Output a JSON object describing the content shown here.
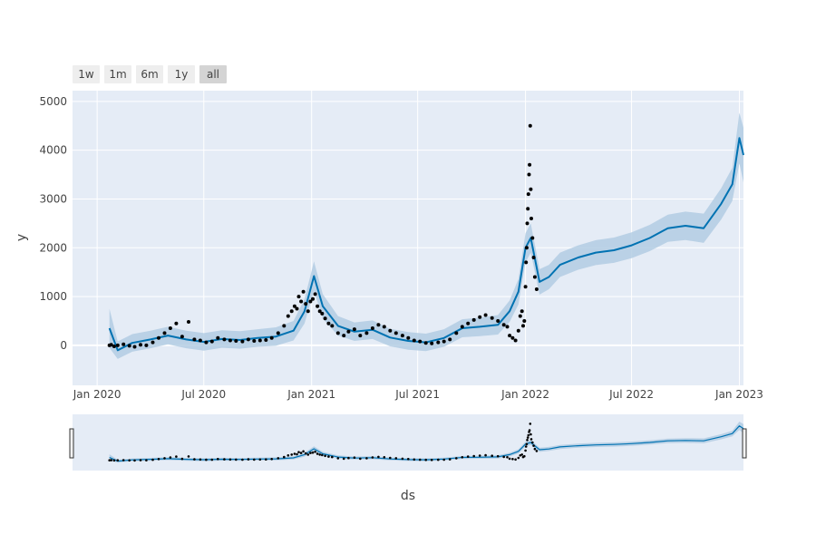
{
  "range_buttons": [
    {
      "label": "1w",
      "active": false
    },
    {
      "label": "1m",
      "active": false
    },
    {
      "label": "6m",
      "active": false
    },
    {
      "label": "1y",
      "active": false
    },
    {
      "label": "all",
      "active": true
    }
  ],
  "colors": {
    "plot_bg": "#e5ecf6",
    "forecast_line": "#0072b2",
    "uncertainty_band": "#b3cde3",
    "observed_points": "#000000",
    "grid": "#ffffff"
  },
  "chart_data": {
    "type": "line",
    "title": "",
    "xlabel": "ds",
    "ylabel": "y",
    "x_range": [
      "2019-11-20",
      "2023-01-08"
    ],
    "ylim": [
      -820,
      5220
    ],
    "x_ticks": [
      {
        "date": "2020-01-01",
        "label": "Jan 2020"
      },
      {
        "date": "2020-07-01",
        "label": "Jul 2020"
      },
      {
        "date": "2021-01-01",
        "label": "Jan 2021"
      },
      {
        "date": "2021-07-01",
        "label": "Jul 2021"
      },
      {
        "date": "2022-01-01",
        "label": "Jan 2022"
      },
      {
        "date": "2022-07-01",
        "label": "Jul 2022"
      },
      {
        "date": "2023-01-01",
        "label": "Jan 2023"
      }
    ],
    "y_ticks": [
      0,
      1000,
      2000,
      3000,
      4000,
      5000
    ],
    "grid": true,
    "rangeslider": true,
    "series": [
      {
        "role": "forecast",
        "x": [
          "2020-01-22",
          "2020-02-05",
          "2020-03-01",
          "2020-04-01",
          "2020-05-01",
          "2020-06-01",
          "2020-07-01",
          "2020-08-01",
          "2020-09-01",
          "2020-10-01",
          "2020-11-01",
          "2020-12-01",
          "2020-12-20",
          "2021-01-05",
          "2021-01-20",
          "2021-02-15",
          "2021-03-15",
          "2021-04-15",
          "2021-05-15",
          "2021-06-15",
          "2021-07-15",
          "2021-08-15",
          "2021-09-15",
          "2021-10-15",
          "2021-11-15",
          "2021-12-05",
          "2021-12-20",
          "2022-01-01",
          "2022-01-10",
          "2022-01-25",
          "2022-02-10",
          "2022-03-01",
          "2022-04-01",
          "2022-05-01",
          "2022-06-01",
          "2022-07-01",
          "2022-08-01",
          "2022-09-01",
          "2022-10-01",
          "2022-11-01",
          "2022-12-01",
          "2022-12-20",
          "2023-01-01",
          "2023-01-08"
        ],
        "values": [
          350,
          -100,
          50,
          120,
          200,
          120,
          70,
          130,
          110,
          150,
          180,
          300,
          700,
          1420,
          800,
          400,
          280,
          320,
          160,
          90,
          60,
          150,
          350,
          380,
          420,
          700,
          1100,
          2000,
          2200,
          1300,
          1400,
          1650,
          1800,
          1900,
          1950,
          2050,
          2200,
          2400,
          2450,
          2400,
          2900,
          3300,
          4250,
          3900
        ],
        "band_halfwidth": [
          400,
          180,
          180,
          180,
          180,
          180,
          180,
          180,
          180,
          180,
          190,
          200,
          250,
          300,
          250,
          200,
          190,
          190,
          180,
          180,
          180,
          180,
          185,
          190,
          200,
          220,
          260,
          300,
          300,
          260,
          250,
          250,
          250,
          255,
          260,
          265,
          270,
          280,
          290,
          300,
          320,
          340,
          520,
          560
        ]
      },
      {
        "role": "observed",
        "x": [
          "2020-01-22",
          "2020-01-25",
          "2020-01-30",
          "2020-02-05",
          "2020-02-15",
          "2020-02-25",
          "2020-03-05",
          "2020-03-15",
          "2020-03-25",
          "2020-04-05",
          "2020-04-15",
          "2020-04-25",
          "2020-05-05",
          "2020-05-15",
          "2020-05-25",
          "2020-06-05",
          "2020-06-15",
          "2020-06-25",
          "2020-07-05",
          "2020-07-15",
          "2020-07-25",
          "2020-08-05",
          "2020-08-15",
          "2020-08-25",
          "2020-09-05",
          "2020-09-15",
          "2020-09-25",
          "2020-10-05",
          "2020-10-15",
          "2020-10-25",
          "2020-11-05",
          "2020-11-15",
          "2020-11-22",
          "2020-11-28",
          "2020-12-03",
          "2020-12-07",
          "2020-12-10",
          "2020-12-14",
          "2020-12-18",
          "2020-12-22",
          "2020-12-26",
          "2020-12-30",
          "2021-01-03",
          "2021-01-07",
          "2021-01-11",
          "2021-01-15",
          "2021-01-19",
          "2021-01-24",
          "2021-01-30",
          "2021-02-05",
          "2021-02-15",
          "2021-02-25",
          "2021-03-05",
          "2021-03-15",
          "2021-03-25",
          "2021-04-05",
          "2021-04-15",
          "2021-04-25",
          "2021-05-05",
          "2021-05-15",
          "2021-05-25",
          "2021-06-05",
          "2021-06-15",
          "2021-06-25",
          "2021-07-05",
          "2021-07-15",
          "2021-07-25",
          "2021-08-05",
          "2021-08-15",
          "2021-08-25",
          "2021-09-05",
          "2021-09-15",
          "2021-09-25",
          "2021-10-05",
          "2021-10-15",
          "2021-10-25",
          "2021-11-05",
          "2021-11-15",
          "2021-11-25",
          "2021-12-01",
          "2021-12-05",
          "2021-12-10",
          "2021-12-15",
          "2021-12-20",
          "2021-12-23",
          "2021-12-26",
          "2021-12-28",
          "2021-12-30",
          "2022-01-01",
          "2022-01-02",
          "2022-01-03",
          "2022-01-04",
          "2022-01-05",
          "2022-01-06",
          "2022-01-07",
          "2022-01-08",
          "2022-01-09",
          "2022-01-10",
          "2022-01-11",
          "2022-01-13",
          "2022-01-15",
          "2022-01-17",
          "2022-01-20"
        ],
        "values": [
          0,
          10,
          -20,
          0,
          20,
          -10,
          -30,
          10,
          0,
          60,
          150,
          250,
          350,
          450,
          180,
          480,
          120,
          100,
          60,
          80,
          150,
          120,
          100,
          90,
          80,
          120,
          90,
          100,
          110,
          150,
          250,
          400,
          600,
          700,
          800,
          750,
          1000,
          900,
          1100,
          850,
          700,
          900,
          950,
          1050,
          800,
          700,
          650,
          550,
          450,
          400,
          250,
          200,
          280,
          330,
          200,
          250,
          350,
          420,
          380,
          300,
          250,
          200,
          150,
          100,
          80,
          50,
          40,
          60,
          80,
          120,
          250,
          380,
          450,
          520,
          580,
          620,
          560,
          500,
          420,
          380,
          200,
          150,
          100,
          300,
          600,
          700,
          400,
          500,
          1200,
          1700,
          2000,
          2500,
          2800,
          3100,
          3500,
          3700,
          4500,
          3200,
          2600,
          2200,
          1800,
          1400,
          1150
        ]
      }
    ]
  }
}
